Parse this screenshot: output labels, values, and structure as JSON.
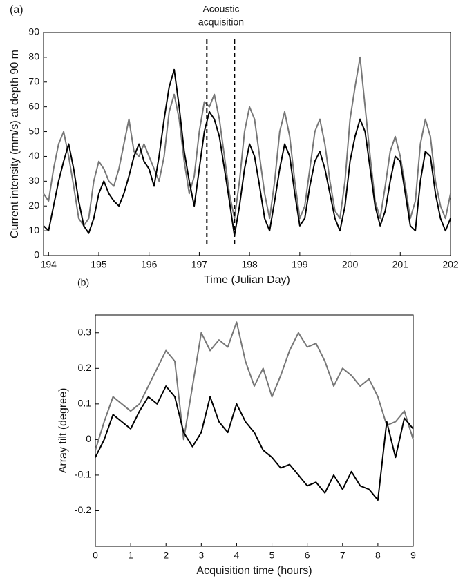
{
  "chart_data": [
    {
      "type": "line",
      "panel_label": "(a)",
      "annotation_lines": [
        "Acoustic",
        "acquisition"
      ],
      "vlines": [
        197.15,
        197.7
      ],
      "x_label": "Time (Julian Day)",
      "y_label": "Current intensity (mm/s) at depth 90 m",
      "x": [
        193.9,
        194.0,
        194.1,
        194.2,
        194.3,
        194.4,
        194.5,
        194.6,
        194.7,
        194.8,
        194.9,
        195.0,
        195.1,
        195.2,
        195.3,
        195.4,
        195.5,
        195.6,
        195.7,
        195.8,
        195.9,
        196.0,
        196.1,
        196.2,
        196.3,
        196.4,
        196.5,
        196.6,
        196.7,
        196.8,
        196.9,
        197.0,
        197.1,
        197.2,
        197.3,
        197.4,
        197.5,
        197.6,
        197.7,
        197.8,
        197.9,
        198.0,
        198.1,
        198.2,
        198.3,
        198.4,
        198.5,
        198.6,
        198.7,
        198.8,
        198.9,
        199.0,
        199.1,
        199.2,
        199.3,
        199.4,
        199.5,
        199.6,
        199.7,
        199.8,
        199.9,
        200.0,
        200.1,
        200.2,
        200.3,
        200.4,
        200.5,
        200.6,
        200.7,
        200.8,
        200.9,
        201.0,
        201.1,
        201.2,
        201.3,
        201.4,
        201.5,
        201.6,
        201.7,
        201.8,
        201.9,
        202.0
      ],
      "series": [
        {
          "color": "#777777",
          "values": [
            25,
            22,
            35,
            45,
            50,
            40,
            28,
            15,
            12,
            15,
            30,
            38,
            35,
            30,
            28,
            35,
            45,
            55,
            42,
            40,
            45,
            40,
            35,
            30,
            40,
            58,
            65,
            55,
            38,
            25,
            32,
            50,
            62,
            60,
            65,
            55,
            40,
            25,
            15,
            30,
            50,
            60,
            55,
            40,
            25,
            15,
            30,
            50,
            58,
            48,
            30,
            15,
            20,
            35,
            50,
            55,
            45,
            30,
            18,
            15,
            30,
            55,
            68,
            80,
            60,
            40,
            22,
            15,
            28,
            42,
            48,
            40,
            28,
            15,
            22,
            45,
            55,
            48,
            30,
            20,
            15,
            25
          ]
        },
        {
          "color": "#000000",
          "values": [
            12,
            10,
            20,
            30,
            38,
            45,
            35,
            22,
            12,
            9,
            15,
            25,
            30,
            25,
            22,
            20,
            25,
            32,
            40,
            45,
            38,
            35,
            28,
            40,
            55,
            68,
            75,
            60,
            42,
            30,
            20,
            35,
            50,
            58,
            55,
            48,
            35,
            22,
            8,
            20,
            35,
            45,
            40,
            28,
            15,
            10,
            22,
            35,
            45,
            40,
            25,
            12,
            15,
            28,
            38,
            42,
            35,
            25,
            15,
            10,
            20,
            38,
            48,
            55,
            50,
            35,
            20,
            12,
            18,
            30,
            40,
            38,
            25,
            12,
            10,
            30,
            42,
            40,
            25,
            15,
            10,
            15
          ]
        }
      ],
      "xlim": [
        193.9,
        202
      ],
      "xticks": [
        194,
        195,
        196,
        197,
        198,
        199,
        200,
        201,
        202
      ],
      "ylim": [
        0,
        90
      ],
      "yticks": [
        0,
        10,
        20,
        30,
        40,
        50,
        60,
        70,
        80,
        90
      ]
    },
    {
      "type": "line",
      "panel_label": "(b)",
      "x_label": "Acquisition time (hours)",
      "y_label": "Array tilt (degree)",
      "x": [
        0,
        0.25,
        0.5,
        0.75,
        1,
        1.25,
        1.5,
        1.75,
        2,
        2.25,
        2.5,
        2.75,
        3,
        3.25,
        3.5,
        3.75,
        4,
        4.25,
        4.5,
        4.75,
        5,
        5.25,
        5.5,
        5.75,
        6,
        6.25,
        6.5,
        6.75,
        7,
        7.25,
        7.5,
        7.75,
        8,
        8.25,
        8.5,
        8.75,
        9
      ],
      "series": [
        {
          "color": "#777777",
          "values": [
            -0.03,
            0.05,
            0.12,
            0.1,
            0.08,
            0.1,
            0.15,
            0.2,
            0.25,
            0.22,
            0,
            0.15,
            0.3,
            0.25,
            0.28,
            0.26,
            0.33,
            0.22,
            0.15,
            0.2,
            0.12,
            0.18,
            0.25,
            0.3,
            0.26,
            0.27,
            0.22,
            0.15,
            0.2,
            0.18,
            0.15,
            0.17,
            0.12,
            0.04,
            0.05,
            0.08,
            0
          ]
        },
        {
          "color": "#000000",
          "values": [
            -0.05,
            0,
            0.07,
            0.05,
            0.03,
            0.08,
            0.12,
            0.1,
            0.15,
            0.12,
            0.02,
            -0.02,
            0.02,
            0.12,
            0.05,
            0.02,
            0.1,
            0.05,
            0.02,
            -0.03,
            -0.05,
            -0.08,
            -0.07,
            -0.1,
            -0.13,
            -0.12,
            -0.15,
            -0.1,
            -0.14,
            -0.09,
            -0.13,
            -0.14,
            -0.17,
            0.05,
            -0.05,
            0.06,
            0.03
          ]
        }
      ],
      "xlim": [
        0,
        9
      ],
      "xticks": [
        0,
        1,
        2,
        3,
        4,
        5,
        6,
        7,
        8,
        9
      ],
      "ylim": [
        -0.3,
        0.35
      ],
      "yticks": [
        -0.2,
        -0.1,
        0,
        0.1,
        0.2,
        0.3
      ]
    }
  ]
}
